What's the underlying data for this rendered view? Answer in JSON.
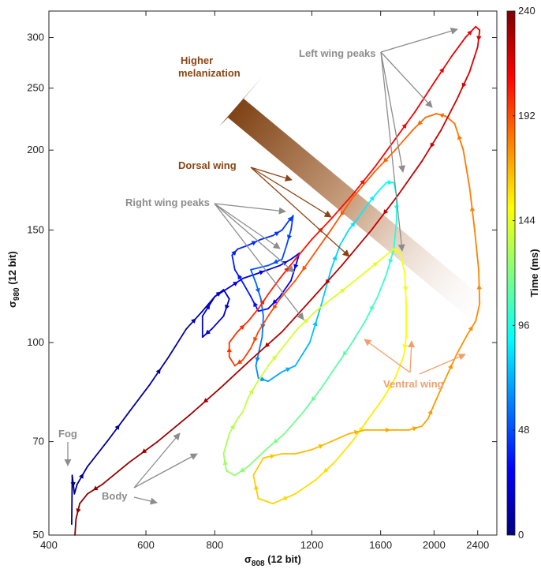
{
  "chart_data": {
    "type": "line",
    "xlabel": "σ",
    "xlabel_sub": "808",
    "xlabel_unit": " (12 bit)",
    "ylabel": "σ",
    "ylabel_sub": "980",
    "ylabel_unit": " (12 bit)",
    "x_scale": "log",
    "y_scale": "log",
    "xlim": [
      400,
      2600
    ],
    "ylim": [
      50,
      330
    ],
    "x_ticks": [
      400,
      600,
      800,
      1200,
      1600,
      2000,
      2400
    ],
    "y_ticks": [
      50,
      70,
      100,
      150,
      200,
      250,
      300
    ],
    "grid": false,
    "colorbar": {
      "label": "Time (ms)",
      "min": 0,
      "max": 240,
      "ticks": [
        0,
        48,
        96,
        144,
        192,
        240
      ],
      "colormap": "jet"
    },
    "series": [
      {
        "t_start": 0,
        "t_end": 50,
        "points": [
          [
            440,
            52
          ],
          [
            441,
            62
          ],
          [
            445,
            58
          ],
          [
            450,
            60
          ],
          [
            470,
            64
          ],
          [
            510,
            70
          ],
          [
            560,
            78
          ],
          [
            610,
            86
          ],
          [
            660,
            95
          ],
          [
            710,
            105
          ],
          [
            760,
            112
          ],
          [
            800,
            118
          ],
          [
            830,
            121
          ],
          [
            850,
            117
          ],
          [
            830,
            110
          ],
          [
            790,
            105
          ],
          [
            760,
            102
          ],
          [
            760,
            110
          ],
          [
            800,
            118
          ],
          [
            850,
            122
          ],
          [
            900,
            126
          ],
          [
            950,
            128
          ],
          [
            1000,
            130
          ],
          [
            1050,
            132
          ],
          [
            1100,
            135
          ],
          [
            1140,
            138
          ],
          [
            1100,
            125
          ],
          [
            1050,
            118
          ],
          [
            1000,
            113
          ],
          [
            960,
            112
          ],
          [
            930,
            118
          ],
          [
            900,
            124
          ],
          [
            870,
            130
          ],
          [
            860,
            137
          ],
          [
            880,
            140
          ],
          [
            920,
            142
          ],
          [
            970,
            145
          ],
          [
            1020,
            147
          ],
          [
            1060,
            150
          ],
          [
            1090,
            155
          ],
          [
            1110,
            158
          ],
          [
            1100,
            150
          ],
          [
            1080,
            142
          ],
          [
            1060,
            135
          ],
          [
            1000,
            132
          ],
          [
            930,
            130
          ]
        ]
      },
      {
        "t_start": 50,
        "t_end": 135,
        "points": [
          [
            930,
            130
          ],
          [
            950,
            124
          ],
          [
            970,
            117
          ],
          [
            980,
            110
          ],
          [
            975,
            102
          ],
          [
            960,
            96
          ],
          [
            950,
            92
          ],
          [
            960,
            88
          ],
          [
            1000,
            87
          ],
          [
            1060,
            90
          ],
          [
            1120,
            92
          ],
          [
            1190,
            100
          ],
          [
            1250,
            115
          ],
          [
            1300,
            130
          ],
          [
            1350,
            142
          ],
          [
            1400,
            150
          ],
          [
            1460,
            157
          ],
          [
            1520,
            165
          ],
          [
            1580,
            172
          ],
          [
            1640,
            178
          ],
          [
            1690,
            178
          ],
          [
            1710,
            170
          ],
          [
            1710,
            155
          ],
          [
            1690,
            140
          ],
          [
            1640,
            128
          ],
          [
            1580,
            118
          ],
          [
            1500,
            108
          ],
          [
            1420,
            100
          ],
          [
            1330,
            92
          ],
          [
            1250,
            85
          ],
          [
            1160,
            78
          ],
          [
            1070,
            72
          ],
          [
            990,
            68
          ],
          [
            920,
            64
          ],
          [
            870,
            62
          ],
          [
            840,
            63
          ],
          [
            830,
            67
          ],
          [
            850,
            72
          ],
          [
            880,
            76
          ],
          [
            900,
            78
          ]
        ]
      },
      {
        "t_start": 135,
        "t_end": 165,
        "points": [
          [
            900,
            78
          ],
          [
            920,
            82
          ],
          [
            950,
            86
          ],
          [
            1000,
            92
          ],
          [
            1060,
            98
          ],
          [
            1130,
            105
          ],
          [
            1220,
            112
          ],
          [
            1320,
            118
          ],
          [
            1420,
            124
          ],
          [
            1520,
            130
          ],
          [
            1620,
            136
          ],
          [
            1690,
            140
          ],
          [
            1740,
            138
          ],
          [
            1770,
            128
          ],
          [
            1780,
            115
          ],
          [
            1780,
            102
          ],
          [
            1760,
            95
          ],
          [
            1700,
            88
          ],
          [
            1620,
            82
          ],
          [
            1520,
            76
          ],
          [
            1420,
            70
          ],
          [
            1320,
            65
          ],
          [
            1220,
            61
          ],
          [
            1120,
            58
          ],
          [
            1020,
            56
          ],
          [
            960,
            57
          ],
          [
            940,
            62
          ],
          [
            980,
            66
          ],
          [
            1060,
            67
          ],
          [
            1120,
            67
          ]
        ]
      },
      {
        "t_start": 165,
        "t_end": 200,
        "points": [
          [
            1120,
            67
          ],
          [
            1200,
            68
          ],
          [
            1300,
            70
          ],
          [
            1400,
            72
          ],
          [
            1500,
            73
          ],
          [
            1600,
            73
          ],
          [
            1700,
            73
          ],
          [
            1800,
            73
          ],
          [
            1900,
            74
          ],
          [
            1950,
            76
          ],
          [
            2000,
            80
          ],
          [
            2100,
            88
          ],
          [
            2200,
            96
          ],
          [
            2300,
            103
          ],
          [
            2380,
            108
          ],
          [
            2420,
            115
          ],
          [
            2410,
            130
          ],
          [
            2370,
            150
          ],
          [
            2320,
            175
          ],
          [
            2260,
            200
          ],
          [
            2180,
            220
          ],
          [
            2100,
            226
          ],
          [
            2020,
            228
          ],
          [
            1930,
            225
          ],
          [
            1830,
            215
          ],
          [
            1700,
            200
          ],
          [
            1560,
            185
          ],
          [
            1420,
            168
          ],
          [
            1300,
            150
          ],
          [
            1200,
            136
          ],
          [
            1120,
            125
          ],
          [
            1050,
            117
          ],
          [
            1000,
            110
          ],
          [
            960,
            104
          ],
          [
            930,
            98
          ],
          [
            900,
            94
          ],
          [
            870,
            92
          ],
          [
            850,
            95
          ],
          [
            850,
            100
          ],
          [
            880,
            104
          ],
          [
            920,
            108
          ]
        ]
      },
      {
        "t_start": 200,
        "t_end": 240,
        "points": [
          [
            920,
            108
          ],
          [
            960,
            113
          ],
          [
            1000,
            119
          ],
          [
            1050,
            126
          ],
          [
            1120,
            135
          ],
          [
            1200,
            145
          ],
          [
            1300,
            156
          ],
          [
            1420,
            170
          ],
          [
            1560,
            188
          ],
          [
            1700,
            208
          ],
          [
            1850,
            230
          ],
          [
            2000,
            255
          ],
          [
            2150,
            280
          ],
          [
            2280,
            300
          ],
          [
            2380,
            312
          ],
          [
            2420,
            308
          ],
          [
            2400,
            290
          ],
          [
            2320,
            265
          ],
          [
            2200,
            240
          ],
          [
            2060,
            215
          ],
          [
            1900,
            192
          ],
          [
            1720,
            170
          ],
          [
            1540,
            150
          ],
          [
            1360,
            132
          ],
          [
            1200,
            117
          ],
          [
            1060,
            104
          ],
          [
            930,
            94
          ],
          [
            820,
            85
          ],
          [
            720,
            77
          ],
          [
            630,
            70
          ],
          [
            560,
            65
          ],
          [
            500,
            60
          ],
          [
            470,
            58
          ],
          [
            455,
            56
          ],
          [
            448,
            53
          ],
          [
            446,
            50
          ]
        ]
      }
    ],
    "annotations": {
      "higher_melanization": [
        "Higher",
        "melanization"
      ],
      "dorsal_wing": "Dorsal wing",
      "left_wing_peaks": "Left wing  peaks",
      "right_wing_peaks": "Right wing peaks",
      "ventral_wing": "Ventral wing",
      "body": "Body",
      "fog": "Fog"
    },
    "colors": {
      "gray_annotation": "#8c8c8c",
      "brown_annotation": "#8b4513",
      "ventral_annotation": "#f0a070"
    }
  }
}
